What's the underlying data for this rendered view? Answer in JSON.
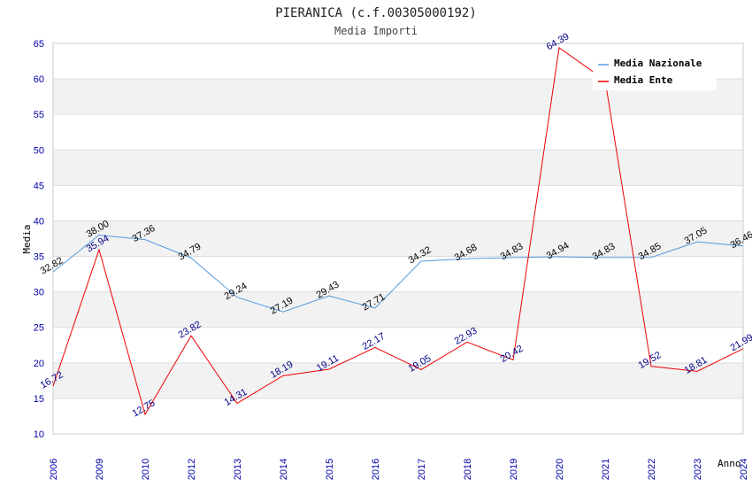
{
  "chart_data": {
    "type": "line",
    "title": "PIERANICA (c.f.00305000192)",
    "subtitle": "Media Importi",
    "xlabel": "Anno",
    "ylabel": "Media",
    "ylim": [
      10,
      65
    ],
    "yticks": [
      10,
      15,
      20,
      25,
      30,
      35,
      40,
      45,
      50,
      55,
      60,
      65
    ],
    "categories": [
      "2006",
      "2009",
      "2010",
      "2012",
      "2013",
      "2014",
      "2015",
      "2016",
      "2017",
      "2018",
      "2019",
      "2020",
      "2021",
      "2022",
      "2023",
      "2024"
    ],
    "series": [
      {
        "name": "Media Nazionale",
        "color": "#5599dd",
        "label_color": "#000000",
        "values": [
          32.82,
          38.0,
          37.36,
          34.79,
          29.24,
          27.19,
          29.43,
          27.71,
          34.32,
          34.68,
          34.83,
          34.94,
          34.83,
          34.85,
          37.05,
          36.46
        ]
      },
      {
        "name": "Media Ente",
        "color": "#ee0000",
        "label_color": "#000088",
        "values": [
          16.72,
          35.94,
          12.75,
          23.82,
          14.31,
          18.19,
          19.11,
          22.17,
          19.05,
          22.93,
          20.42,
          64.39,
          59.8,
          19.52,
          18.81,
          21.99
        ]
      }
    ],
    "data_labels_nazionale": [
      "32.82",
      "38.00",
      "37.36",
      "34.79",
      "29.24",
      "27.19",
      "29.43",
      "27.71",
      "34.32",
      "34.68",
      "34.83",
      "34.94",
      "34.83",
      "34.85",
      "37.05",
      "36.46"
    ],
    "data_labels_ente": [
      "16.72",
      "35.94",
      "12.75",
      "23.82",
      "14.31",
      "18.19",
      "19.11",
      "22.17",
      "19.05",
      "22.93",
      "20.42",
      "64.39",
      "",
      "19.52",
      "18.81",
      "21.99"
    ],
    "legend": [
      "Media Nazionale",
      "Media Ente"
    ],
    "legend_position": "top-right",
    "grid": true
  }
}
